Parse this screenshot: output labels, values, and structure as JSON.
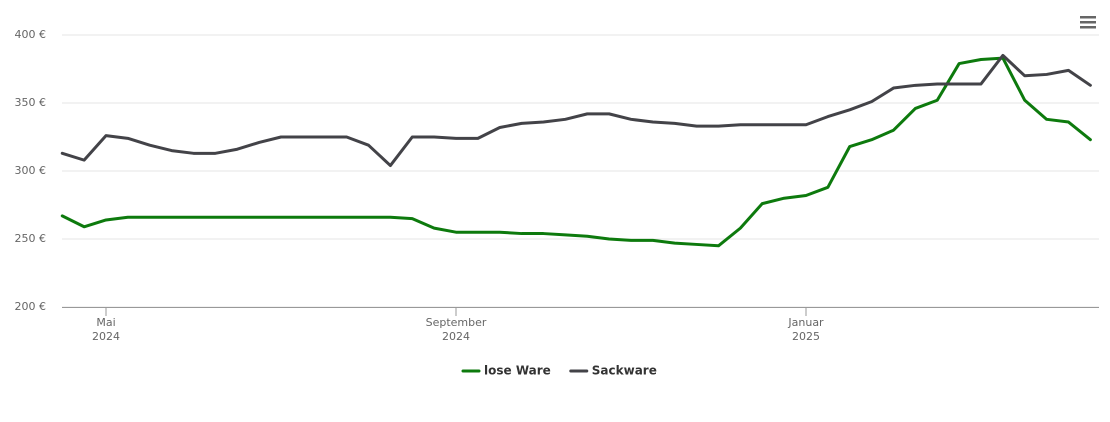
{
  "chart_data": {
    "type": "line",
    "categories": [
      null,
      null,
      [
        "Mai",
        "2024"
      ],
      null,
      null,
      null,
      null,
      null,
      null,
      null,
      null,
      null,
      null,
      null,
      null,
      null,
      null,
      null,
      [
        "September",
        "2024"
      ],
      null,
      null,
      null,
      null,
      null,
      null,
      null,
      null,
      null,
      null,
      null,
      null,
      null,
      null,
      null,
      [
        "Januar",
        "2025"
      ],
      null,
      null,
      null,
      null,
      null,
      null,
      null,
      null,
      null,
      null,
      null,
      null,
      null
    ],
    "series": [
      {
        "name": "lose Ware",
        "color": "#0d7a0d",
        "values": [
          267,
          259,
          264,
          266,
          266,
          266,
          266,
          266,
          266,
          266,
          266,
          266,
          266,
          266,
          266,
          266,
          265,
          258,
          255,
          255,
          255,
          254,
          254,
          253,
          252,
          250,
          249,
          249,
          247,
          246,
          245,
          258,
          276,
          280,
          282,
          288,
          318,
          323,
          330,
          346,
          352,
          379,
          382,
          383,
          352,
          338,
          336,
          323
        ]
      },
      {
        "name": "Sackware",
        "color": "#434348",
        "values": [
          313,
          308,
          326,
          324,
          319,
          315,
          313,
          313,
          316,
          321,
          325,
          325,
          325,
          325,
          319,
          304,
          325,
          325,
          324,
          324,
          332,
          335,
          336,
          338,
          342,
          342,
          338,
          336,
          335,
          333,
          333,
          334,
          334,
          334,
          334,
          340,
          345,
          351,
          361,
          363,
          364,
          364,
          364,
          385,
          370,
          371,
          374,
          363
        ]
      }
    ],
    "ylim": [
      200,
      400
    ],
    "yticks": [
      {
        "value": 200,
        "label": "200 €"
      },
      {
        "value": 250,
        "label": "250 €"
      },
      {
        "value": 300,
        "label": "300 €"
      },
      {
        "value": 350,
        "label": "350 €"
      },
      {
        "value": 400,
        "label": "400 €"
      }
    ],
    "grid": true,
    "legend": "bottom"
  }
}
